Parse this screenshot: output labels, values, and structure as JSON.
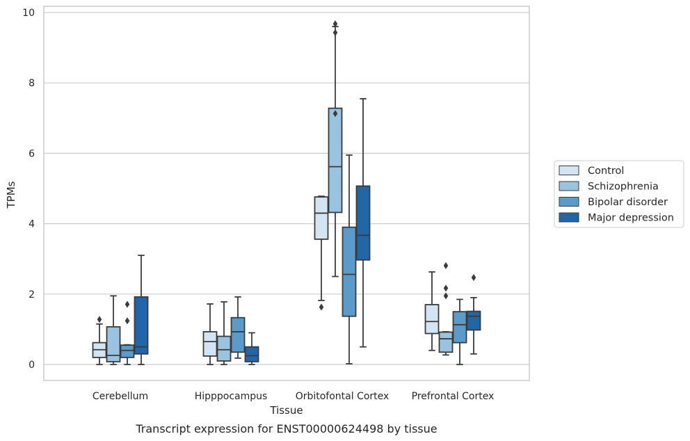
{
  "caption": "Transcript expression for ENST00000624498 by tissue",
  "chart_data": {
    "type": "box",
    "title": "",
    "xlabel": "Tissue",
    "ylabel": "TPMs",
    "ylim": [
      -0.45,
      10.15
    ],
    "yticks": [
      0,
      2,
      4,
      6,
      8,
      10
    ],
    "grid": true,
    "legend_position": "right",
    "categories": [
      "Cerebellum",
      "Hipppocampus",
      "Orbitofontal Cortex",
      "Prefrontal Cortex"
    ],
    "series": [
      {
        "name": "Control",
        "color": "#d3e4f3",
        "boxes": [
          {
            "whisker_low": 0.0,
            "q1": 0.2,
            "median": 0.42,
            "q3": 0.62,
            "whisker_high": 1.15,
            "outliers": [
              1.28
            ]
          },
          {
            "whisker_low": 0.0,
            "q1": 0.24,
            "median": 0.65,
            "q3": 0.93,
            "whisker_high": 1.72,
            "outliers": []
          },
          {
            "whisker_low": 1.82,
            "q1": 3.56,
            "median": 4.3,
            "q3": 4.76,
            "whisker_high": 4.78,
            "outliers": [
              1.63
            ]
          },
          {
            "whisker_low": 0.4,
            "q1": 0.88,
            "median": 1.22,
            "q3": 1.7,
            "whisker_high": 2.63,
            "outliers": []
          }
        ]
      },
      {
        "name": "Schizophrenia",
        "color": "#9ac3df",
        "boxes": [
          {
            "whisker_low": 0.0,
            "q1": 0.08,
            "median": 0.26,
            "q3": 1.07,
            "whisker_high": 1.95,
            "outliers": []
          },
          {
            "whisker_low": 0.0,
            "q1": 0.1,
            "median": 0.42,
            "q3": 0.8,
            "whisker_high": 1.78,
            "outliers": []
          },
          {
            "whisker_low": 2.5,
            "q1": 4.32,
            "median": 5.62,
            "q3": 7.28,
            "whisker_high": 9.6,
            "outliers": [
              7.13,
              9.43,
              9.68
            ]
          },
          {
            "whisker_low": 0.27,
            "q1": 0.35,
            "median": 0.73,
            "q3": 0.92,
            "whisker_high": 0.93,
            "outliers": [
              1.95,
              2.17,
              2.81
            ]
          }
        ]
      },
      {
        "name": "Bipolar disorder",
        "color": "#5a9bc9",
        "boxes": [
          {
            "whisker_low": 0.0,
            "q1": 0.2,
            "median": 0.4,
            "q3": 0.55,
            "whisker_high": 0.56,
            "outliers": [
              1.24,
              1.71
            ]
          },
          {
            "whisker_low": 0.18,
            "q1": 0.35,
            "median": 0.93,
            "q3": 1.33,
            "whisker_high": 1.92,
            "outliers": []
          },
          {
            "whisker_low": 0.02,
            "q1": 1.37,
            "median": 2.56,
            "q3": 3.9,
            "whisker_high": 5.95,
            "outliers": []
          },
          {
            "whisker_low": 0.0,
            "q1": 0.62,
            "median": 1.13,
            "q3": 1.5,
            "whisker_high": 1.85,
            "outliers": []
          }
        ]
      },
      {
        "name": "Major depression",
        "color": "#2366a8",
        "boxes": [
          {
            "whisker_low": 0.0,
            "q1": 0.3,
            "median": 0.5,
            "q3": 1.92,
            "whisker_high": 3.1,
            "outliers": []
          },
          {
            "whisker_low": 0.0,
            "q1": 0.08,
            "median": 0.25,
            "q3": 0.5,
            "whisker_high": 0.9,
            "outliers": []
          },
          {
            "whisker_low": 0.5,
            "q1": 2.97,
            "median": 3.67,
            "q3": 5.07,
            "whisker_high": 7.55,
            "outliers": []
          },
          {
            "whisker_low": 0.3,
            "q1": 0.98,
            "median": 1.37,
            "q3": 1.51,
            "whisker_high": 1.9,
            "outliers": [
              2.47
            ]
          }
        ]
      }
    ]
  }
}
